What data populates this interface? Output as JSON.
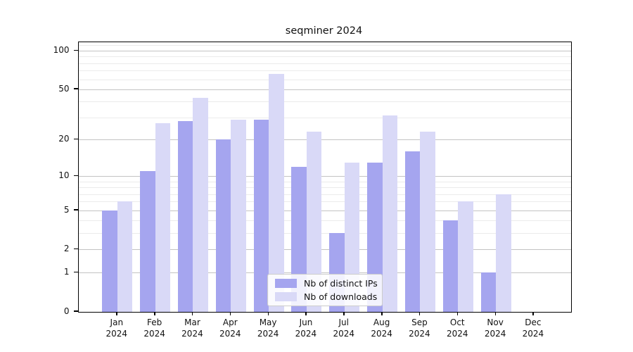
{
  "title": "seqminer 2024",
  "chart_data": {
    "type": "bar",
    "title": "seqminer 2024",
    "categories": [
      "Jan",
      "Feb",
      "Mar",
      "Apr",
      "May",
      "Jun",
      "Jul",
      "Aug",
      "Sep",
      "Oct",
      "Nov",
      "Dec"
    ],
    "year": "2024",
    "series": [
      {
        "name": "Nb of distinct IPs",
        "color": "#a5a5ef",
        "values": [
          5,
          11,
          28,
          20,
          29,
          12,
          3,
          13,
          16,
          4,
          1,
          0
        ]
      },
      {
        "name": "Nb of downloads",
        "color": "#d9d9f7",
        "values": [
          6,
          27,
          43,
          29,
          66,
          23,
          13,
          31,
          23,
          6,
          7,
          0
        ]
      }
    ],
    "xlabel": "",
    "ylabel": "",
    "y_axis": {
      "scale": "log1p",
      "ticks": [
        0,
        1,
        2,
        5,
        10,
        20,
        50,
        100
      ],
      "minor_ticks": [
        3,
        4,
        6,
        7,
        8,
        9,
        30,
        40,
        60,
        70,
        80,
        90,
        110
      ],
      "range": [
        0,
        117
      ]
    },
    "grid": "on",
    "legend": {
      "position": "bottom-center",
      "entries": [
        "Nb of distinct IPs",
        "Nb of downloads"
      ]
    },
    "colors": {
      "distinct_ips_bar": "#a5a5ef",
      "downloads_bar": "#d9d9f7",
      "major_grid": "#c3c3c3",
      "minor_grid": "#ebebeb",
      "axis": "#000000",
      "text": "#111111",
      "background": "#ffffff"
    }
  }
}
